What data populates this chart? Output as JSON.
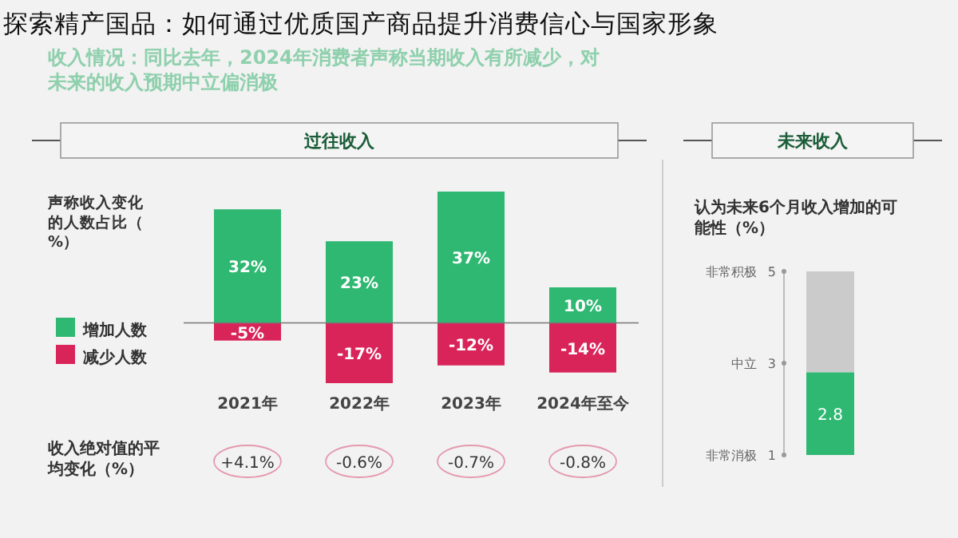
{
  "chart_data": [
    {
      "type": "bar",
      "title": "探索精产国品：如何通过优质国产商品提升消费信心与国家形象",
      "subtitle": "收入情况：同比去年，2024年消费者声称当期收入有所减少，对未来的收入预期中立偏消极",
      "ylabel": "声称收入变化的人数占比（%）",
      "categories": [
        "2021年",
        "2022年",
        "2023年",
        "2024年至今"
      ],
      "legend": "left",
      "stacked": true,
      "series": [
        {
          "name": "增加人数",
          "color": "#2fb872",
          "values": [
            32,
            23,
            37,
            10
          ],
          "value_labels": [
            "32%",
            "23%",
            "37%",
            "10%"
          ]
        },
        {
          "name": "减少人数",
          "color": "#d9245a",
          "values": [
            -5,
            -17,
            -12,
            -14
          ],
          "value_labels": [
            "-5%",
            "-17%",
            "-12%",
            "-14%"
          ]
        }
      ],
      "annotations": [
        "过往收入",
        "收入绝对值的平均变化（%）",
        "+4.1%",
        "-0.6%",
        "-0.7%",
        "-0.8%"
      ]
    },
    {
      "type": "bar",
      "title": "未来收入",
      "subtitle": "认为未来6个月收入增加的可能性（%）",
      "categories": [
        null
      ],
      "values": [
        2.8
      ],
      "color": "#2fb872",
      "data_labels": true,
      "ylim": [
        1,
        5
      ],
      "yticks": [
        5,
        3,
        1
      ],
      "annotations": [
        "非常积极",
        "中立",
        "非常消极"
      ]
    }
  ]
}
